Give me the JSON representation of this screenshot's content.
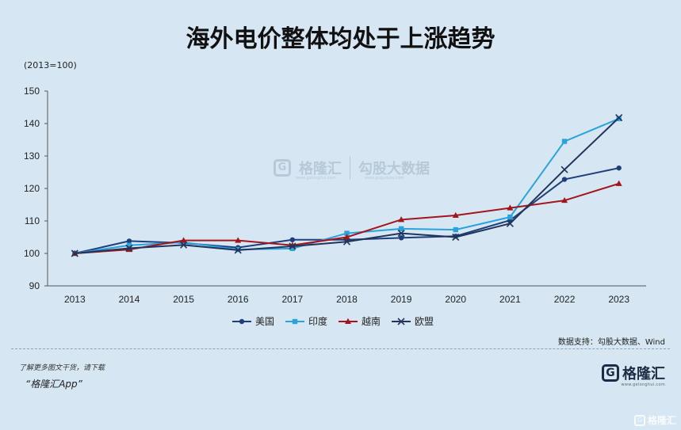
{
  "chart_data": {
    "type": "line",
    "title": "海外电价整体均处于上涨趋势",
    "unit_label": "(2013=100)",
    "categories": [
      "2013",
      "2014",
      "2015",
      "2016",
      "2017",
      "2018",
      "2019",
      "2020",
      "2021",
      "2022",
      "2023"
    ],
    "ylim": [
      90,
      150
    ],
    "yticks": [
      90,
      100,
      110,
      120,
      130,
      140,
      150
    ],
    "legend_position": "bottom",
    "series": [
      {
        "name": "美国",
        "color": "#1f3f7a",
        "marker": "circle",
        "values": [
          100,
          103.8,
          103.2,
          101.8,
          104.2,
          104.2,
          104.8,
          105.3,
          110.2,
          122.8,
          126.3
        ]
      },
      {
        "name": "印度",
        "color": "#2aa3dc",
        "marker": "square",
        "values": [
          100,
          102.5,
          103.4,
          101.2,
          101.5,
          106.2,
          107.6,
          107.3,
          111.2,
          134.5,
          141.5
        ]
      },
      {
        "name": "越南",
        "color": "#a3151b",
        "marker": "triangle",
        "values": [
          100,
          101.2,
          104.0,
          104.0,
          102.5,
          105.0,
          110.4,
          111.7,
          114.0,
          116.3,
          121.5
        ]
      },
      {
        "name": "欧盟",
        "color": "#22345c",
        "marker": "x",
        "values": [
          100,
          101.6,
          102.6,
          101.0,
          102.2,
          103.6,
          106.2,
          105.0,
          109.2,
          125.8,
          141.8
        ]
      }
    ]
  },
  "source": "数据支持：勾股大数据、Wind",
  "footer": {
    "note": "了解更多图文干货，请下载",
    "app": "“格隆汇App”",
    "logo_text": "格隆汇",
    "logo_mark": "G",
    "logo_url": "www.gelonghui.com"
  },
  "watermark": {
    "brand": "格隆汇",
    "brand_url": "www.gelonghui.com",
    "partner": "勾股大数据",
    "partner_url": "www.gogudata.com"
  },
  "bottom_watermark": "格隆汇"
}
